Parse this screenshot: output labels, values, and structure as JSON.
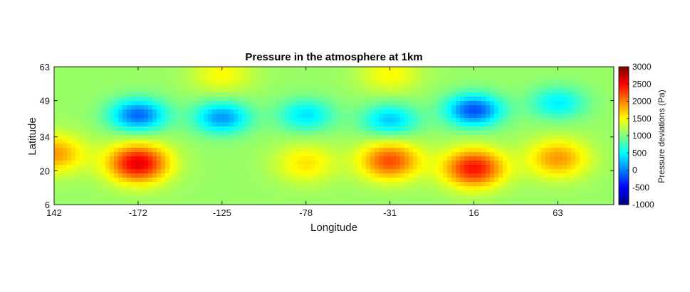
{
  "chart_data": {
    "type": "heatmap",
    "title": "Pressure in the atmosphere at 1km",
    "xlabel": "Longitude",
    "ylabel": "Latitude",
    "x_tick_labels": [
      "142",
      "-172",
      "-125",
      "-78",
      "-31",
      "16",
      "63"
    ],
    "y_tick_labels": [
      "63",
      "49",
      "34",
      "20",
      "6"
    ],
    "colorbar": {
      "label": "Pressure deviations (Pa)",
      "range": [
        -1000,
        3000
      ],
      "tick_labels": [
        "3000",
        "2500",
        "2000",
        "1500",
        "1000",
        "500",
        "0",
        "-500",
        "-1000"
      ],
      "colormap": "jet"
    },
    "background_value": 1100,
    "features": [
      {
        "kind": "low",
        "lon_label_near": "-172",
        "lat": 43,
        "value": -100
      },
      {
        "kind": "low",
        "lon_label_near": "-125",
        "lat": 42,
        "value": 100
      },
      {
        "kind": "low",
        "lon_label_near": "-78",
        "lat": 43,
        "value": 400
      },
      {
        "kind": "low",
        "lon_label_near": "-31",
        "lat": 41,
        "value": 300
      },
      {
        "kind": "low",
        "lon_label_near": "16",
        "lat": 45,
        "value": -200
      },
      {
        "kind": "low",
        "lon_label_near": "63",
        "lat": 48,
        "value": 450
      },
      {
        "kind": "high",
        "lon_label_near": "142",
        "lat": 27,
        "value": 1900
      },
      {
        "kind": "high",
        "lon_label_near": "-172",
        "lat": 23,
        "value": 2600
      },
      {
        "kind": "high",
        "lon_label_near": "-78",
        "lat": 23,
        "value": 1600
      },
      {
        "kind": "high",
        "lon_label_near": "-31",
        "lat": 24,
        "value": 2200
      },
      {
        "kind": "high",
        "lon_label_near": "16",
        "lat": 21,
        "value": 2450
      },
      {
        "kind": "high",
        "lon_label_near": "63",
        "lat": 25,
        "value": 1900
      },
      {
        "kind": "high",
        "lon_label_near": "-125",
        "lat": 60,
        "value": 1500
      },
      {
        "kind": "high",
        "lon_label_near": "-31",
        "lat": 60,
        "value": 1500
      }
    ]
  }
}
